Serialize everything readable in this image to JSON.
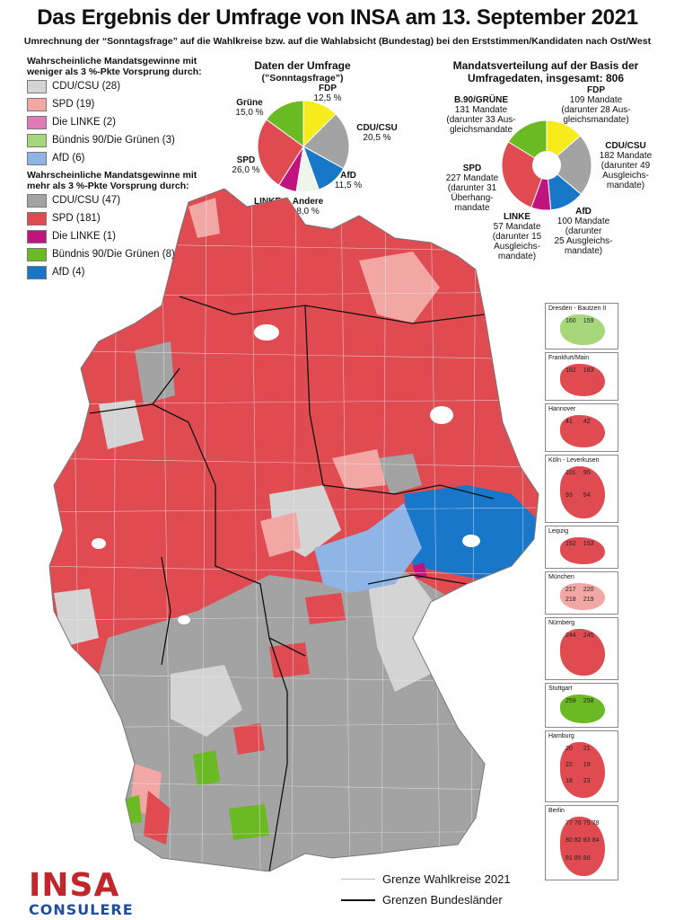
{
  "title": "Das Ergebnis der Umfrage von INSA am 13. September 2021",
  "subtitle": "Umrechnung der “Sonntagsfrage” auf die Wahlkreise bzw. auf die Wahlabsicht (Bundestag) bei den Erststimmen/Kandidaten nach Ost/West",
  "legend": {
    "weak_head": "Wahrscheinliche Mandatsgewinne mit weniger als 3 %-Pkte Vorsprung durch:",
    "weak": [
      {
        "label": "CDU/CSU (28)",
        "color": "#d4d4d4"
      },
      {
        "label": "SPD (19)",
        "color": "#f2a7a4"
      },
      {
        "label": "Die LINKE (2)",
        "color": "#e07ab7"
      },
      {
        "label": "Bündnis 90/Die Grünen (3)",
        "color": "#a6d77a"
      },
      {
        "label": "AfD (6)",
        "color": "#8fb5e6"
      }
    ],
    "strong_head": "Wahrscheinliche Mandatsgewinne mit mehr als 3 %-Pkte Vorsprung durch:",
    "strong": [
      {
        "label": "CDU/CSU (47)",
        "color": "#a3a3a3"
      },
      {
        "label": "SPD (181)",
        "color": "#df4b50"
      },
      {
        "label": "Die LINKE (1)",
        "color": "#c0137e"
      },
      {
        "label": "Bündnis 90/Die Grünen (8)",
        "color": "#6cba23"
      },
      {
        "label": "AfD (4)",
        "color": "#1877c9"
      }
    ]
  },
  "poll_chart": {
    "title": "Daten der Umfrage",
    "subtitle": "(”Sonntagsfrage”)",
    "slices": [
      {
        "name": "FDP",
        "value_label": "12,5 %",
        "value": 12.5,
        "color": "#f7ec1b"
      },
      {
        "name": "CDU/CSU",
        "value_label": "20,5 %",
        "value": 20.5,
        "color": "#a3a3a3"
      },
      {
        "name": "AfD",
        "value_label": "11,5 %",
        "value": 11.5,
        "color": "#1877c9"
      },
      {
        "name": "Andere",
        "value_label": "8,0 %",
        "value": 8.0,
        "color": "#eef5ea"
      },
      {
        "name": "LINKE",
        "value_label": "6,5 %",
        "value": 6.5,
        "color": "#c0137e"
      },
      {
        "name": "SPD",
        "value_label": "26,0 %",
        "value": 26.0,
        "color": "#df4b50"
      },
      {
        "name": "Grüne",
        "value_label": "15,0 %",
        "value": 15.0,
        "color": "#6cba23"
      }
    ]
  },
  "seat_chart": {
    "title": "Mandatsverteilung auf der Basis der Umfragedaten, insgesamt: 806",
    "slices": [
      {
        "name": "FDP",
        "value": 109,
        "color": "#f7ec1b",
        "text": [
          "109 Mandate",
          "(darunter 28 Aus-",
          "gleichsmandate)"
        ]
      },
      {
        "name": "CDU/CSU",
        "value": 182,
        "color": "#a3a3a3",
        "text": [
          "182 Mandate",
          "(darunter 49",
          "Ausgleichs-",
          "mandate)"
        ]
      },
      {
        "name": "AfD",
        "value": 100,
        "color": "#1877c9",
        "text": [
          "100 Mandate",
          "(darunter",
          "25 Ausgleichs-",
          "mandate)"
        ]
      },
      {
        "name": "LINKE",
        "value": 57,
        "color": "#c0137e",
        "text": [
          "57 Mandate",
          "(darunter 15",
          "Ausgleichs-",
          "mandate)"
        ]
      },
      {
        "name": "SPD",
        "value": 227,
        "color": "#df4b50",
        "text": [
          "227 Mandate",
          "(darunter 31",
          "Überhang-",
          "mandate"
        ]
      },
      {
        "name": "B.90/GRÜNE",
        "value": 131,
        "color": "#6cba23",
        "text": [
          "131 Mandate",
          "(darunter 33 Aus-",
          "gleichsmandate"
        ]
      }
    ]
  },
  "insets": [
    {
      "name": "Dresden - Bautzen II",
      "numbers": [
        "160",
        "159"
      ]
    },
    {
      "name": "Frankfurt/Main",
      "numbers": [
        "182",
        "183"
      ]
    },
    {
      "name": "Hannover",
      "numbers": [
        "41",
        "42"
      ]
    },
    {
      "name": "Köln -  Leverkusen",
      "numbers": [
        "101",
        "95",
        "93",
        "94"
      ]
    },
    {
      "name": "Leipzig",
      "numbers": [
        "152",
        "153"
      ]
    },
    {
      "name": "München",
      "numbers": [
        "217",
        "220",
        "218",
        "219"
      ]
    },
    {
      "name": "Nürnberg",
      "numbers": [
        "244",
        "245"
      ]
    },
    {
      "name": "Stuttgart",
      "numbers": [
        "259",
        "258"
      ]
    },
    {
      "name": "Hamburg",
      "numbers": [
        "20",
        "21",
        "22",
        "19",
        "18",
        "23"
      ]
    },
    {
      "name": "Berlin",
      "numbers": [
        "77",
        "76",
        "75",
        "78",
        "80",
        "82",
        "83",
        "84",
        "81",
        "85",
        "86"
      ]
    }
  ],
  "bottom_legend": {
    "wahlkreise": "Grenze Wahlkreise 2021",
    "laender": "Grenzen Bundesländer"
  },
  "logo": {
    "main": "INSA",
    "sub": "CONSULERE"
  }
}
